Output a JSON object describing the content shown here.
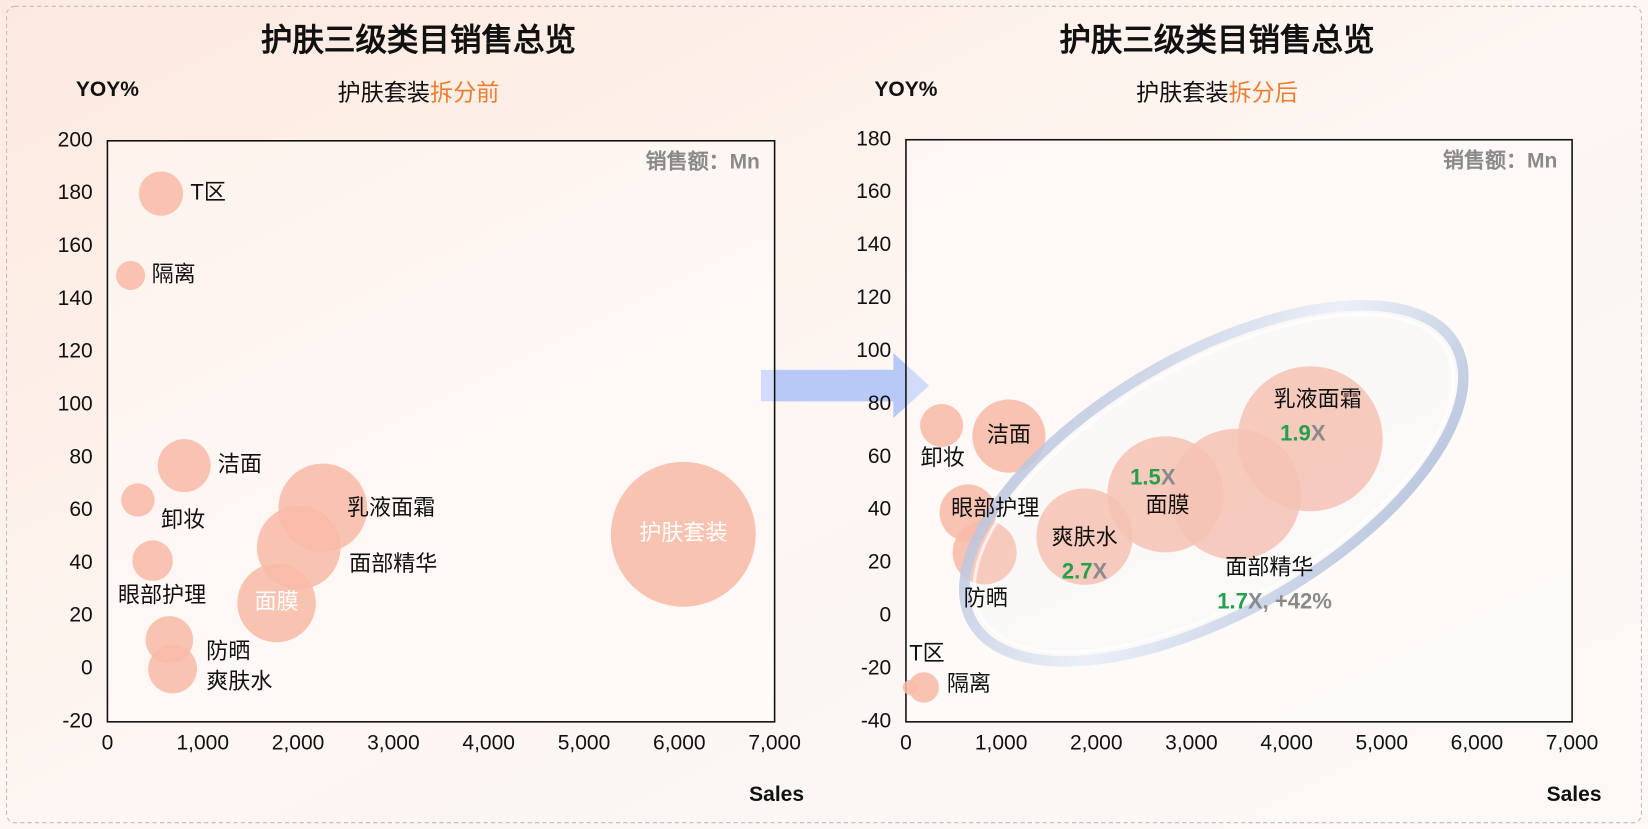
{
  "chart_data": [
    {
      "type": "scatter",
      "title": "护肤三级类目销售总览",
      "subtitle": "护肤套装",
      "subtitle_highlight": "拆分前",
      "y_label": "YOY%",
      "x_label": "Sales",
      "note": "销售额：Mn",
      "color": "#f8bba8",
      "categories": [
        "T区",
        "隔离",
        "洁面",
        "卸妆",
        "眼部护理",
        "乳液面霜",
        "面部精华",
        "面膜",
        "防晒",
        "爽肤水",
        "护肤套装"
      ],
      "x": [
        562,
        243,
        805,
        320,
        474,
        2260,
        2007,
        1775,
        650,
        684,
        6042
      ],
      "values": [
        180,
        149,
        77,
        64,
        41,
        61,
        46,
        25,
        11,
        0,
        51
      ],
      "xlim": [
        0,
        7000
      ],
      "ylim": [
        -20,
        200
      ],
      "xticks": [
        0,
        {
          "value": 1000,
          "label": "1,000"
        },
        {
          "value": 2000,
          "label": "2,000"
        },
        {
          "value": 3000,
          "label": "3,000"
        },
        {
          "value": 4000,
          "label": "4,000"
        },
        {
          "value": 5000,
          "label": "5,000"
        },
        {
          "value": 6000,
          "label": "6,000"
        },
        {
          "value": 7000,
          "label": "7,000"
        }
      ],
      "yticks": [
        -20,
        0,
        20,
        40,
        60,
        80,
        100,
        120,
        140,
        160,
        180,
        200
      ]
    },
    {
      "type": "scatter",
      "title": "护肤三级类目销售总览",
      "subtitle": "护肤套装",
      "subtitle_highlight": "拆分后",
      "y_label": "YOY%",
      "x_label": "Sales",
      "note": "销售额：Mn",
      "color": "#f8bba8",
      "categories": [
        "T区",
        "隔离",
        "卸妆",
        "洁面",
        "眼部护理",
        "防晒",
        "爽肤水",
        "面膜",
        "面部精华",
        "乳液面霜"
      ],
      "x": [
        44,
        187,
        375,
        1082,
        651,
        827,
        1877,
        2727,
        3465,
        4248
      ],
      "values": [
        -27,
        -27,
        72,
        68,
        39,
        24,
        30,
        46,
        46,
        67
      ],
      "annotations": [
        null,
        null,
        null,
        null,
        null,
        null,
        {
          "value": "2.7",
          "unit": "X"
        },
        {
          "value": "1.5",
          "unit": "X"
        },
        {
          "value": "1.7",
          "unit": "X, +42%"
        },
        {
          "value": "1.9",
          "unit": "X"
        }
      ],
      "xlim": [
        0,
        7000
      ],
      "ylim": [
        -40,
        180
      ],
      "xticks": [
        0,
        {
          "value": 1000,
          "label": "1,000"
        },
        {
          "value": 2000,
          "label": "2,000"
        },
        {
          "value": 3000,
          "label": "3,000"
        },
        {
          "value": 4000,
          "label": "4,000"
        },
        {
          "value": 5000,
          "label": "5,000"
        },
        {
          "value": 6000,
          "label": "6,000"
        },
        {
          "value": 7000,
          "label": "7,000"
        }
      ],
      "yticks": [
        -40,
        -20,
        0,
        20,
        40,
        60,
        80,
        100,
        120,
        140,
        160,
        180
      ]
    }
  ]
}
